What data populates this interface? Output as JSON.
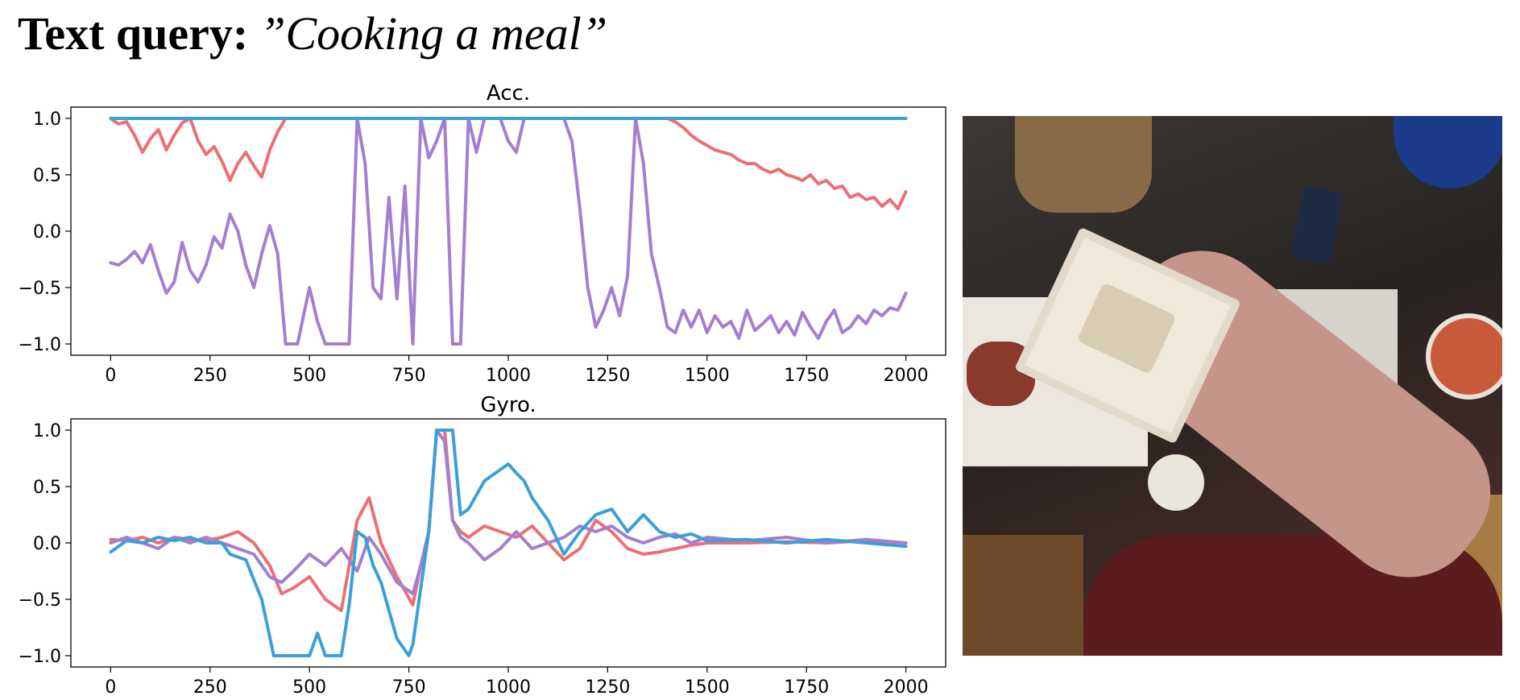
{
  "header": {
    "label": "Text query:",
    "query": "”Cooking a meal”"
  },
  "photo_alt": "Overhead view of a person holding a container of rice in a kitchen",
  "colors": {
    "red": "#ec6f73",
    "purple": "#a47ed1",
    "blue": "#3aa0d8"
  },
  "chart_data": [
    {
      "type": "line",
      "title": "Acc.",
      "xlim": [
        -100,
        2100
      ],
      "ylim": [
        -1.1,
        1.1
      ],
      "xticks": [
        0,
        250,
        500,
        750,
        1000,
        1250,
        1500,
        1750,
        2000
      ],
      "yticks": [
        -1.0,
        -0.5,
        0.0,
        0.5,
        1.0
      ],
      "series": [
        {
          "color": "red",
          "x": [
            0,
            20,
            40,
            60,
            80,
            100,
            120,
            140,
            160,
            180,
            200,
            220,
            240,
            260,
            280,
            300,
            320,
            340,
            360,
            380,
            400,
            420,
            440,
            1400,
            1420,
            1440,
            1460,
            1480,
            1500,
            1520,
            1540,
            1560,
            1580,
            1600,
            1620,
            1640,
            1660,
            1680,
            1700,
            1720,
            1740,
            1760,
            1780,
            1800,
            1820,
            1840,
            1860,
            1880,
            1900,
            1920,
            1940,
            1960,
            1980,
            2000
          ],
          "y": [
            1.0,
            0.95,
            0.97,
            0.85,
            0.7,
            0.82,
            0.9,
            0.72,
            0.85,
            0.96,
            1.0,
            0.8,
            0.68,
            0.75,
            0.62,
            0.45,
            0.6,
            0.7,
            0.58,
            0.48,
            0.72,
            0.88,
            1.0,
            1.0,
            0.97,
            0.92,
            0.85,
            0.8,
            0.76,
            0.72,
            0.7,
            0.68,
            0.63,
            0.6,
            0.6,
            0.55,
            0.52,
            0.55,
            0.5,
            0.48,
            0.45,
            0.5,
            0.42,
            0.45,
            0.38,
            0.4,
            0.3,
            0.33,
            0.28,
            0.3,
            0.22,
            0.28,
            0.2,
            0.35
          ]
        },
        {
          "color": "purple",
          "x": [
            0,
            20,
            40,
            60,
            80,
            100,
            120,
            140,
            160,
            180,
            200,
            220,
            240,
            260,
            280,
            300,
            320,
            340,
            360,
            380,
            400,
            420,
            440,
            470,
            500,
            520,
            540,
            560,
            580,
            600,
            620,
            640,
            660,
            680,
            700,
            720,
            740,
            760,
            780,
            800,
            820,
            840,
            860,
            880,
            900,
            920,
            940,
            960,
            980,
            1000,
            1020,
            1040,
            1060,
            1080,
            1100,
            1120,
            1140,
            1160,
            1180,
            1200,
            1220,
            1240,
            1260,
            1280,
            1300,
            1320,
            1340,
            1360,
            1380,
            1400,
            1420,
            1440,
            1460,
            1480,
            1500,
            1520,
            1540,
            1560,
            1580,
            1600,
            1620,
            1640,
            1660,
            1680,
            1700,
            1720,
            1740,
            1760,
            1780,
            1800,
            1820,
            1840,
            1860,
            1880,
            1900,
            1920,
            1940,
            1960,
            1980,
            2000
          ],
          "y": [
            -0.28,
            -0.3,
            -0.25,
            -0.18,
            -0.28,
            -0.12,
            -0.35,
            -0.55,
            -0.45,
            -0.1,
            -0.35,
            -0.45,
            -0.3,
            -0.05,
            -0.15,
            0.15,
            0.0,
            -0.3,
            -0.5,
            -0.2,
            0.05,
            -0.2,
            -1.0,
            -1.0,
            -0.5,
            -0.8,
            -1.0,
            -1.0,
            -1.0,
            -1.0,
            1.0,
            0.6,
            -0.5,
            -0.6,
            0.3,
            -0.6,
            0.4,
            -1.0,
            1.0,
            0.65,
            0.8,
            1.0,
            -1.0,
            -1.0,
            1.0,
            0.7,
            1.0,
            1.0,
            1.0,
            0.8,
            0.7,
            1.0,
            1.0,
            1.0,
            1.0,
            1.0,
            1.0,
            0.8,
            0.2,
            -0.5,
            -0.85,
            -0.7,
            -0.5,
            -0.75,
            -0.4,
            1.0,
            0.6,
            -0.2,
            -0.5,
            -0.85,
            -0.9,
            -0.7,
            -0.85,
            -0.7,
            -0.9,
            -0.75,
            -0.85,
            -0.8,
            -0.95,
            -0.7,
            -0.88,
            -0.82,
            -0.75,
            -0.9,
            -0.8,
            -0.92,
            -0.72,
            -0.85,
            -0.95,
            -0.8,
            -0.7,
            -0.9,
            -0.85,
            -0.75,
            -0.82,
            -0.7,
            -0.75,
            -0.68,
            -0.7,
            -0.55
          ]
        },
        {
          "color": "blue",
          "x": [
            0,
            2000
          ],
          "y": [
            1.0,
            1.0
          ]
        }
      ]
    },
    {
      "type": "line",
      "title": "Gyro.",
      "xlim": [
        -100,
        2100
      ],
      "ylim": [
        -1.1,
        1.1
      ],
      "xticks": [
        0,
        250,
        500,
        750,
        1000,
        1250,
        1500,
        1750,
        2000
      ],
      "yticks": [
        -1.0,
        -0.5,
        0.0,
        0.5,
        1.0
      ],
      "series": [
        {
          "color": "red",
          "x": [
            0,
            40,
            80,
            120,
            160,
            200,
            240,
            280,
            320,
            360,
            400,
            430,
            460,
            500,
            540,
            580,
            620,
            650,
            680,
            720,
            760,
            780,
            800,
            820,
            840,
            860,
            880,
            900,
            940,
            980,
            1020,
            1060,
            1100,
            1140,
            1180,
            1220,
            1260,
            1300,
            1340,
            1380,
            1420,
            1460,
            1500,
            1600,
            1700,
            1800,
            1900,
            2000
          ],
          "y": [
            0.03,
            0.02,
            0.05,
            0.0,
            0.05,
            0.03,
            0.02,
            0.05,
            0.1,
            0.0,
            -0.2,
            -0.45,
            -0.4,
            -0.3,
            -0.5,
            -0.6,
            0.2,
            0.4,
            0.0,
            -0.3,
            -0.55,
            -0.2,
            0.1,
            1.0,
            1.0,
            0.2,
            0.1,
            0.05,
            0.15,
            0.1,
            0.05,
            0.15,
            0.0,
            -0.15,
            -0.05,
            0.2,
            0.1,
            -0.05,
            -0.1,
            -0.08,
            -0.05,
            -0.02,
            0.0,
            0.0,
            0.01,
            0.0,
            0.02,
            0.0
          ]
        },
        {
          "color": "purple",
          "x": [
            0,
            40,
            80,
            120,
            160,
            200,
            240,
            280,
            320,
            360,
            400,
            430,
            460,
            500,
            540,
            580,
            620,
            650,
            680,
            720,
            760,
            780,
            800,
            820,
            840,
            860,
            880,
            900,
            940,
            980,
            1020,
            1060,
            1100,
            1140,
            1180,
            1220,
            1260,
            1300,
            1340,
            1380,
            1420,
            1460,
            1500,
            1600,
            1700,
            1800,
            1900,
            2000
          ],
          "y": [
            0.0,
            0.05,
            0.0,
            -0.05,
            0.05,
            0.0,
            0.05,
            0.0,
            -0.05,
            -0.1,
            -0.3,
            -0.35,
            -0.25,
            -0.1,
            -0.2,
            -0.05,
            -0.25,
            0.05,
            -0.1,
            -0.35,
            -0.45,
            -0.2,
            0.1,
            1.0,
            0.9,
            0.2,
            0.05,
            0.0,
            -0.15,
            -0.05,
            0.1,
            -0.05,
            0.0,
            0.05,
            0.15,
            0.1,
            0.15,
            0.05,
            0.0,
            0.05,
            0.08,
            0.0,
            0.05,
            0.02,
            0.05,
            0.0,
            0.03,
            0.0
          ]
        },
        {
          "color": "blue",
          "x": [
            0,
            40,
            80,
            120,
            160,
            200,
            240,
            280,
            300,
            340,
            380,
            410,
            430,
            460,
            500,
            520,
            540,
            560,
            580,
            600,
            620,
            640,
            660,
            680,
            720,
            750,
            760,
            780,
            800,
            820,
            860,
            880,
            900,
            940,
            980,
            1000,
            1020,
            1040,
            1060,
            1100,
            1140,
            1180,
            1220,
            1260,
            1300,
            1340,
            1380,
            1420,
            1460,
            1500,
            1600,
            1700,
            1800,
            1900,
            2000
          ],
          "y": [
            -0.08,
            0.02,
            0.0,
            0.05,
            0.02,
            0.05,
            0.0,
            0.0,
            -0.1,
            -0.15,
            -0.5,
            -1.0,
            -1.0,
            -1.0,
            -1.0,
            -0.8,
            -1.0,
            -1.0,
            -1.0,
            -0.55,
            0.1,
            0.05,
            -0.2,
            -0.35,
            -0.85,
            -1.0,
            -0.9,
            -0.4,
            0.1,
            1.0,
            1.0,
            0.25,
            0.3,
            0.55,
            0.65,
            0.7,
            0.62,
            0.55,
            0.4,
            0.2,
            -0.1,
            0.1,
            0.25,
            0.3,
            0.1,
            0.25,
            0.1,
            0.05,
            0.08,
            0.02,
            0.03,
            0.0,
            0.03,
            0.0,
            -0.03
          ]
        }
      ]
    }
  ]
}
